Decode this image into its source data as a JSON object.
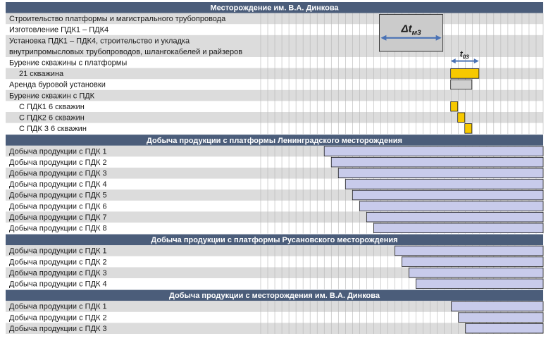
{
  "chart_data": {
    "type": "gantt",
    "title": "",
    "timeline": {
      "columns": 40
    },
    "sections": [
      {
        "title": "Месторождение им. В.А. Динкова",
        "rows": [
          {
            "label": "Строительство платформы и магистрального трубопровода",
            "indent": 0,
            "bars": []
          },
          {
            "label": "Изготовление ПДК1 – ПДК4",
            "indent": 0,
            "bars": []
          },
          {
            "label": "Установка ПДК1 – ПДК4, строительство и укладка",
            "label2": "внутрипромысловых трубопроводов, шлангокабелей и райзеров",
            "indent": 0,
            "double": true,
            "bars": []
          },
          {
            "label": "Бурение скважины с платформы",
            "indent": 0,
            "bars": []
          },
          {
            "label": "21 скважина",
            "indent": 1,
            "bars": [
              {
                "start": 26.9,
                "end": 30.9,
                "kind": "drill"
              }
            ]
          },
          {
            "label": "Аренда буровой установки",
            "indent": 0,
            "bars": [
              {
                "start": 26.9,
                "end": 29.9,
                "kind": "rent"
              }
            ]
          },
          {
            "label": "Бурение скважин с ПДК",
            "indent": 0,
            "bars": []
          },
          {
            "label": "С ПДК1 6 скважин",
            "indent": 1,
            "bars": [
              {
                "start": 26.9,
                "end": 27.9,
                "kind": "drill"
              }
            ]
          },
          {
            "label": "С ПДК2 6 скважин",
            "indent": 1,
            "bars": [
              {
                "start": 27.9,
                "end": 28.9,
                "kind": "drill"
              }
            ]
          },
          {
            "label": "С ПДК 3 6 скважин",
            "indent": 1,
            "bars": [
              {
                "start": 28.9,
                "end": 29.9,
                "kind": "drill"
              }
            ]
          }
        ],
        "annotations": [
          {
            "id": "dt-m3",
            "prefix": "Δ",
            "main": "t",
            "sub": "м3"
          },
          {
            "id": "t-03",
            "prefix": "",
            "main": "t",
            "sub": "03"
          }
        ]
      },
      {
        "title": "Добыча продукции с платформы Ленинградского месторождения",
        "rows": [
          {
            "label": "Добыча продукции с ПДК 1",
            "indent": 0,
            "bars": [
              {
                "start": 9.0,
                "end": 40,
                "kind": "prod"
              }
            ]
          },
          {
            "label": "Добыча продукции с ПДК 2",
            "indent": 0,
            "bars": [
              {
                "start": 10.0,
                "end": 40,
                "kind": "prod"
              }
            ]
          },
          {
            "label": "Добыча продукции с ПДК 3",
            "indent": 0,
            "bars": [
              {
                "start": 11.0,
                "end": 40,
                "kind": "prod"
              }
            ]
          },
          {
            "label": "Добыча продукции с ПДК 4",
            "indent": 0,
            "bars": [
              {
                "start": 12.0,
                "end": 40,
                "kind": "prod"
              }
            ]
          },
          {
            "label": "Добыча продукции с ПДК 5",
            "indent": 0,
            "bars": [
              {
                "start": 13.0,
                "end": 40,
                "kind": "prod"
              }
            ]
          },
          {
            "label": "Добыча продукции с ПДК 6",
            "indent": 0,
            "bars": [
              {
                "start": 14.0,
                "end": 40,
                "kind": "prod"
              }
            ]
          },
          {
            "label": "Добыча продукции с ПДК 7",
            "indent": 0,
            "bars": [
              {
                "start": 15.0,
                "end": 40,
                "kind": "prod"
              }
            ]
          },
          {
            "label": "Добыча продукции с ПДК 8",
            "indent": 0,
            "bars": [
              {
                "start": 16.0,
                "end": 40,
                "kind": "prod"
              }
            ]
          }
        ]
      },
      {
        "title": "Добыча продукции с платформы Русановского месторождения",
        "rows": [
          {
            "label": "Добыча продукции с ПДК 1",
            "indent": 0,
            "bars": [
              {
                "start": 19.0,
                "end": 40,
                "kind": "prod"
              }
            ]
          },
          {
            "label": "Добыча продукции с ПДК 2",
            "indent": 0,
            "bars": [
              {
                "start": 20.0,
                "end": 40,
                "kind": "prod"
              }
            ]
          },
          {
            "label": "Добыча продукции с ПДК 3",
            "indent": 0,
            "bars": [
              {
                "start": 21.0,
                "end": 40,
                "kind": "prod"
              }
            ]
          },
          {
            "label": "Добыча продукции с ПДК 4",
            "indent": 0,
            "bars": [
              {
                "start": 22.0,
                "end": 40,
                "kind": "prod"
              }
            ]
          }
        ]
      },
      {
        "title": "Добыча продукции с месторождения им. В.А. Динкова",
        "rows": [
          {
            "label": "Добыча продукции с ПДК 1",
            "indent": 0,
            "bars": [
              {
                "start": 27.0,
                "end": 40,
                "kind": "prod"
              }
            ]
          },
          {
            "label": "Добыча продукции с ПДК 2",
            "indent": 0,
            "bars": [
              {
                "start": 28.0,
                "end": 40,
                "kind": "prod"
              }
            ]
          },
          {
            "label": "Добыча продукции с ПДК 3",
            "indent": 0,
            "bars": [
              {
                "start": 29.0,
                "end": 40,
                "kind": "prod"
              }
            ]
          }
        ]
      }
    ],
    "colors": {
      "header": "#4b5d7a",
      "stripe": "#dcdcdc",
      "grid": "#b4b4b4",
      "drill": "#f7c900",
      "rent": "#d0d0d0",
      "prod": "#c8cbeb",
      "accent": "#4a72b5",
      "gray_box": "#cbcbcb"
    }
  }
}
